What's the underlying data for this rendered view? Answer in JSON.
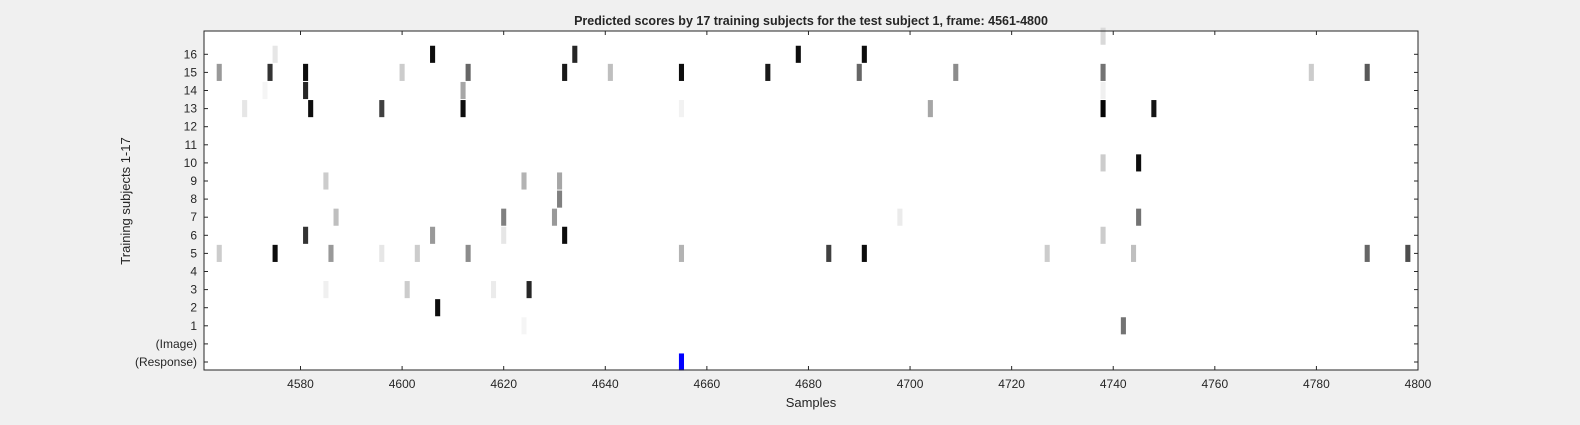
{
  "chart_data": {
    "type": "heatmap",
    "title": "Predicted scores by 17 training subjects for the test subject 1, frame: 4561-4800",
    "xlabel": "Samples",
    "ylabel": "Training subjects 1-17",
    "xlim": [
      4561,
      4800
    ],
    "x_ticks": [
      4580,
      4600,
      4620,
      4640,
      4660,
      4680,
      4700,
      4720,
      4740,
      4760,
      4780,
      4800
    ],
    "y_ticks": [
      "(Response)",
      "(Image)",
      "1",
      "2",
      "3",
      "4",
      "5",
      "6",
      "7",
      "8",
      "9",
      "10",
      "11",
      "12",
      "13",
      "14",
      "15",
      "16"
    ],
    "grid": false,
    "colormap": "gray (white = 0, black = 1)",
    "response_color": "#0000ff",
    "rows": [
      {
        "label": "16",
        "cells": [
          [
            4575,
            0.1
          ],
          [
            4606,
            0.95
          ],
          [
            4634,
            0.85
          ],
          [
            4678,
            0.95
          ],
          [
            4691,
            0.95
          ]
        ]
      },
      {
        "label": "15",
        "cells": [
          [
            4564,
            0.4
          ],
          [
            4574,
            0.8
          ],
          [
            4581,
            0.95
          ],
          [
            4600,
            0.2
          ],
          [
            4613,
            0.6
          ],
          [
            4632,
            0.9
          ],
          [
            4641,
            0.25
          ],
          [
            4655,
            0.95
          ],
          [
            4672,
            0.9
          ],
          [
            4690,
            0.6
          ],
          [
            4709,
            0.45
          ],
          [
            4738,
            0.55
          ],
          [
            4779,
            0.2
          ],
          [
            4790,
            0.65
          ]
        ]
      },
      {
        "label": "14",
        "cells": [
          [
            4581,
            0.85
          ],
          [
            4573,
            0.04
          ],
          [
            4612,
            0.35
          ],
          [
            4738,
            0.06
          ]
        ]
      },
      {
        "label": "13",
        "cells": [
          [
            4569,
            0.1
          ],
          [
            4582,
            0.95
          ],
          [
            4596,
            0.75
          ],
          [
            4612,
            0.95
          ],
          [
            4655,
            0.05
          ],
          [
            4704,
            0.35
          ],
          [
            4738,
            0.98
          ],
          [
            4748,
            0.92
          ]
        ]
      },
      {
        "label": "10",
        "cells": [
          [
            4738,
            0.2
          ],
          [
            4745,
            0.95
          ]
        ]
      },
      {
        "label": "9",
        "cells": [
          [
            4585,
            0.2
          ],
          [
            4624,
            0.3
          ],
          [
            4631,
            0.35
          ]
        ]
      },
      {
        "label": "8",
        "cells": [
          [
            4631,
            0.5
          ]
        ]
      },
      {
        "label": "7",
        "cells": [
          [
            4587,
            0.25
          ],
          [
            4620,
            0.5
          ],
          [
            4630,
            0.4
          ],
          [
            4698,
            0.08
          ],
          [
            4745,
            0.55
          ]
        ]
      },
      {
        "label": "6",
        "cells": [
          [
            4581,
            0.8
          ],
          [
            4606,
            0.4
          ],
          [
            4620,
            0.1
          ],
          [
            4632,
            0.95
          ],
          [
            4738,
            0.2
          ]
        ]
      },
      {
        "label": "5",
        "cells": [
          [
            4564,
            0.2
          ],
          [
            4575,
            0.95
          ],
          [
            4586,
            0.4
          ],
          [
            4596,
            0.1
          ],
          [
            4603,
            0.2
          ],
          [
            4613,
            0.45
          ],
          [
            4655,
            0.3
          ],
          [
            4684,
            0.75
          ],
          [
            4691,
            0.95
          ],
          [
            4727,
            0.2
          ],
          [
            4744,
            0.25
          ],
          [
            4790,
            0.6
          ],
          [
            4798,
            0.7
          ]
        ]
      },
      {
        "label": "3",
        "cells": [
          [
            4585,
            0.06
          ],
          [
            4601,
            0.2
          ],
          [
            4618,
            0.08
          ],
          [
            4625,
            0.85
          ]
        ]
      },
      {
        "label": "2",
        "cells": [
          [
            4607,
            0.95
          ]
        ]
      },
      {
        "label": "1",
        "cells": [
          [
            4624,
            0.04
          ],
          [
            4742,
            0.55
          ]
        ]
      },
      {
        "label": "17",
        "cells": [
          [
            4738,
            0.15
          ]
        ]
      }
    ],
    "response": [
      {
        "x": 4655,
        "value": 1
      }
    ]
  }
}
